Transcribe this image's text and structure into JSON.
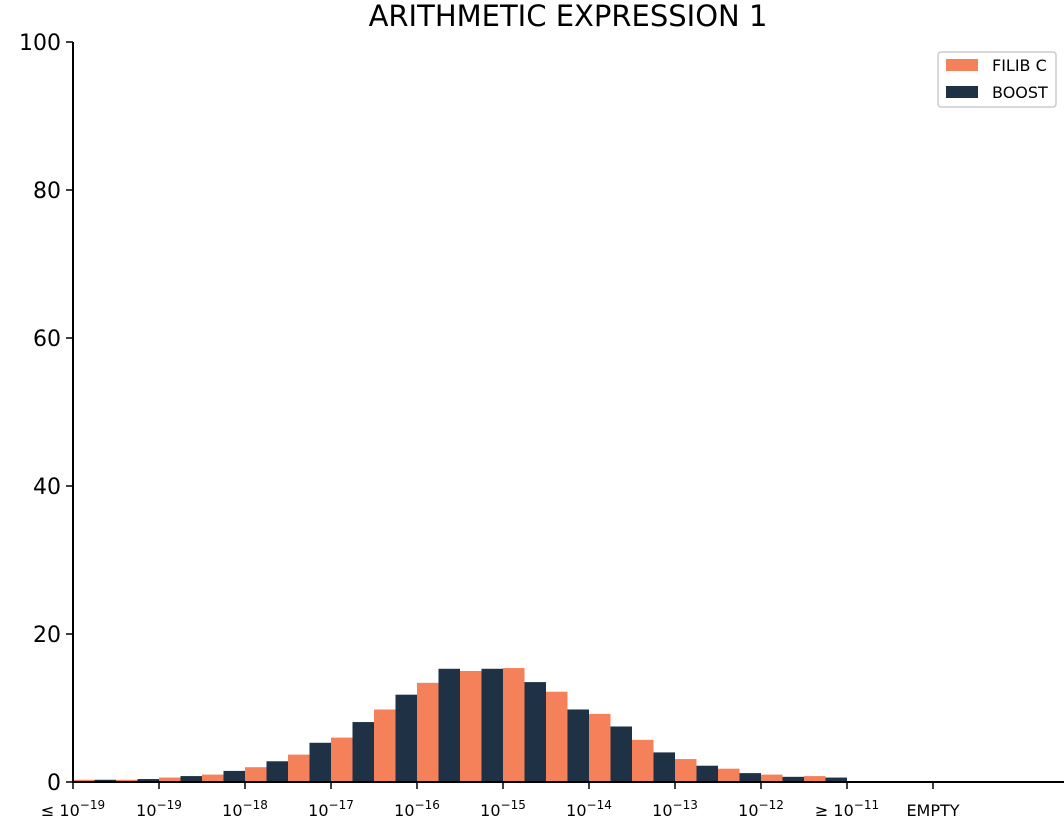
{
  "chart_data": {
    "type": "bar",
    "title": "ARITHMETIC EXPRESSION 1",
    "xlabel": "",
    "ylabel": "",
    "ylim": [
      0,
      100
    ],
    "yticks": [
      "0",
      "20",
      "40",
      "60",
      "80",
      "100"
    ],
    "xticks": [
      {
        "prefix": "≤ ",
        "base": "10",
        "exp": "−19"
      },
      {
        "prefix": "",
        "base": "10",
        "exp": "−19"
      },
      {
        "prefix": "",
        "base": "10",
        "exp": "−18"
      },
      {
        "prefix": "",
        "base": "10",
        "exp": "−17"
      },
      {
        "prefix": "",
        "base": "10",
        "exp": "−16"
      },
      {
        "prefix": "",
        "base": "10",
        "exp": "−15"
      },
      {
        "prefix": "",
        "base": "10",
        "exp": "−14"
      },
      {
        "prefix": "",
        "base": "10",
        "exp": "−13"
      },
      {
        "prefix": "",
        "base": "10",
        "exp": "−12"
      },
      {
        "prefix": "≥ ",
        "base": "10",
        "exp": "−11"
      },
      {
        "prefix": "EMPTY",
        "base": "",
        "exp": ""
      }
    ],
    "bins_per_interval": 2,
    "legend_position": "top-right",
    "series": [
      {
        "name": "FILIB C",
        "color": "#F4815A",
        "values": [
          0.3,
          0.3,
          0.6,
          1.0,
          2.0,
          3.7,
          6.0,
          9.8,
          13.4,
          15.0,
          15.4,
          12.2,
          9.2,
          5.7,
          3.1,
          1.8,
          1.0,
          0.8,
          0.0,
          0.0
        ]
      },
      {
        "name": "BOOST",
        "color": "#1E3145",
        "values": [
          0.3,
          0.4,
          0.8,
          1.5,
          2.8,
          5.3,
          8.1,
          11.8,
          15.3,
          15.3,
          13.5,
          9.8,
          7.5,
          4.0,
          2.2,
          1.2,
          0.7,
          0.6,
          0.0,
          0.0
        ]
      }
    ]
  }
}
